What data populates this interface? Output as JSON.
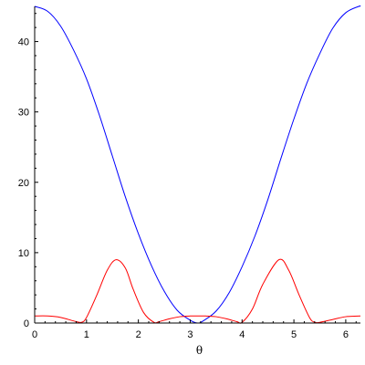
{
  "chart_data": {
    "type": "line",
    "xlabel": "θ",
    "ylabel": "",
    "xlim": [
      0,
      6.2832
    ],
    "ylim": [
      0,
      45
    ],
    "x_ticks": [
      0,
      1,
      2,
      3,
      4,
      5,
      6
    ],
    "y_ticks": [
      0,
      10,
      20,
      30,
      40
    ],
    "grid": false,
    "legend": "none",
    "series": [
      {
        "color": "#0000ff",
        "x": [
          0,
          0.25,
          0.5,
          0.75,
          1.0,
          1.25,
          1.5,
          1.75,
          2.0,
          2.25,
          2.5,
          2.75,
          3.0,
          3.1416,
          3.25,
          3.5,
          3.75,
          4.0,
          4.25,
          4.5,
          4.75,
          5.0,
          5.25,
          5.5,
          5.75,
          6.0,
          6.25,
          6.2832
        ],
        "y": [
          45,
          44.3,
          42.2,
          38.8,
          34.7,
          29.5,
          23.7,
          17.9,
          12.7,
          8.2,
          4.5,
          1.8,
          0.4,
          0,
          0.3,
          1.7,
          4.3,
          8.0,
          12.4,
          17.6,
          23.4,
          29.0,
          34.1,
          38.3,
          41.9,
          44.1,
          45,
          45
        ]
      },
      {
        "color": "#ff0000",
        "x": [
          0,
          0.25,
          0.5,
          0.75,
          0.9,
          1.0,
          1.2,
          1.4,
          1.5708,
          1.75,
          1.9,
          2.1,
          2.3,
          2.4,
          2.6,
          2.8,
          3.0,
          3.1416,
          3.3,
          3.5,
          3.7,
          3.9,
          4.0,
          4.2,
          4.4,
          4.7124,
          4.9,
          5.1,
          5.3,
          5.4,
          5.5,
          5.75,
          6.0,
          6.2832
        ],
        "y": [
          1.0,
          1.0,
          0.8,
          0.3,
          0.1,
          0.8,
          4.0,
          7.5,
          9.0,
          7.8,
          4.8,
          1.5,
          0.1,
          0.2,
          0.6,
          0.9,
          1.0,
          1.0,
          1.0,
          0.9,
          0.6,
          0.2,
          0.1,
          2.0,
          5.5,
          9.0,
          7.5,
          4.0,
          0.8,
          0.1,
          0.1,
          0.5,
          0.9,
          1.0
        ]
      }
    ]
  }
}
